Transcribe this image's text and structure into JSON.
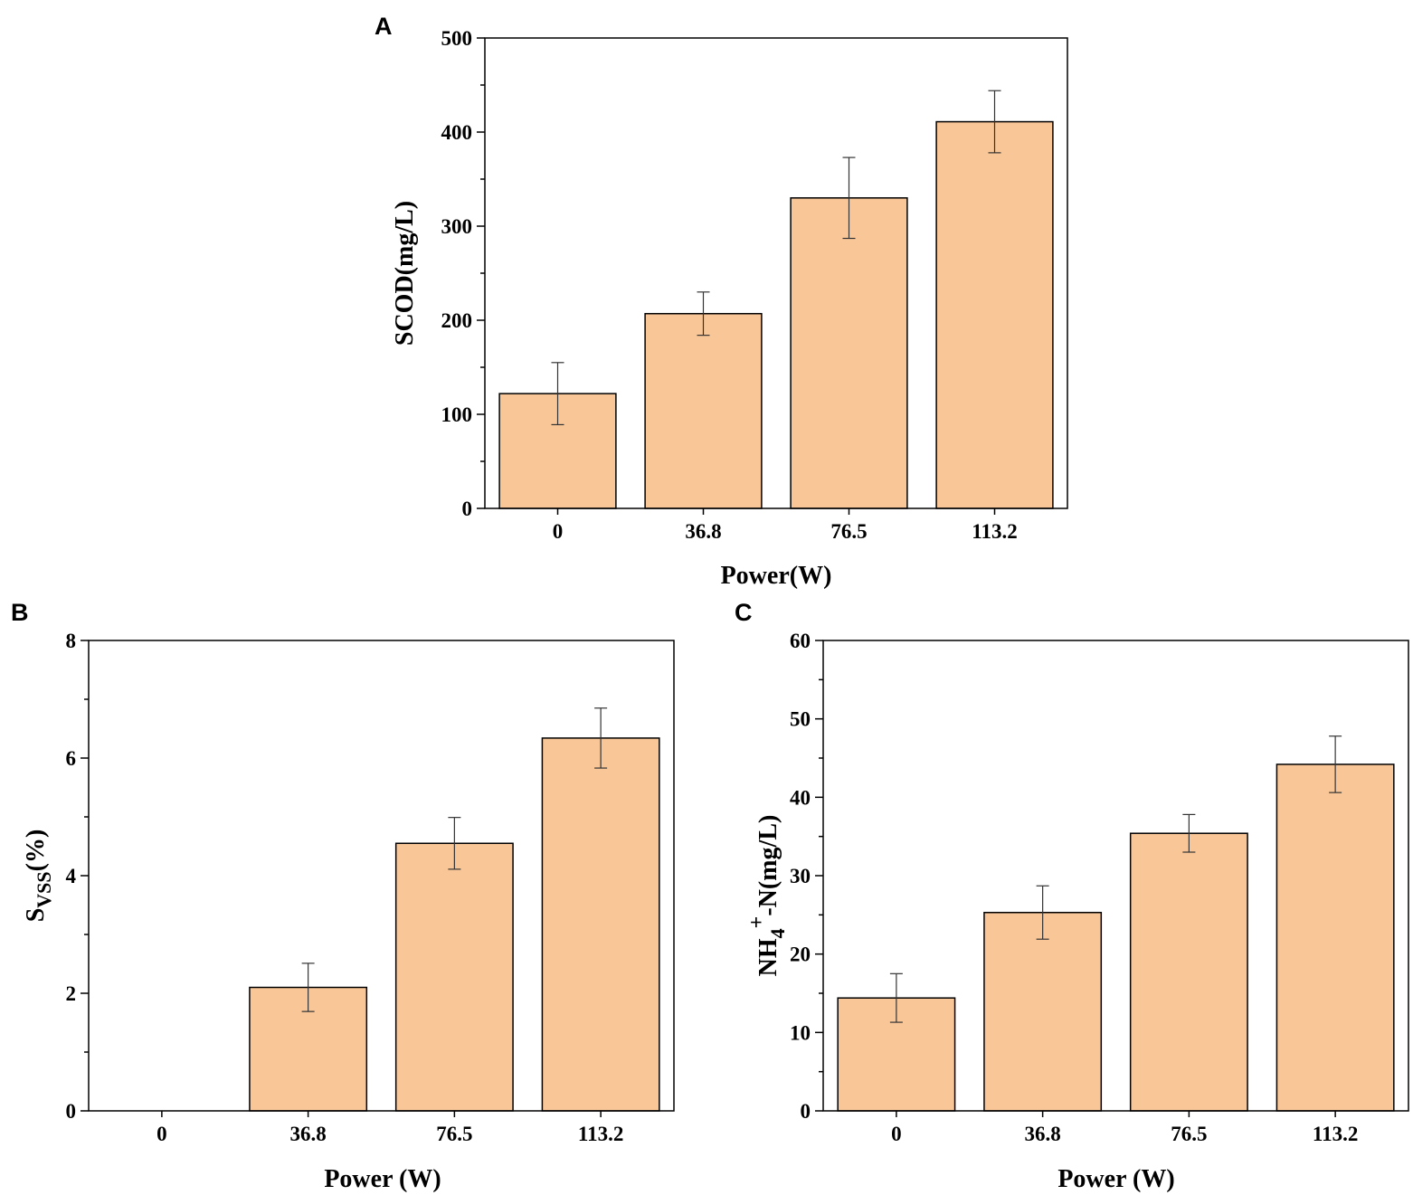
{
  "colors": {
    "bar_fill": "#F9C697",
    "bar_stroke": "#000000",
    "error_bar": "#333333"
  },
  "chart_data": [
    {
      "id": "A",
      "panel_label": "A",
      "type": "bar",
      "categories": [
        "0",
        "36.8",
        "76.5",
        "113.2"
      ],
      "values": [
        122,
        207,
        330,
        411
      ],
      "errors": [
        33,
        23,
        43,
        33
      ],
      "xlabel": "Power(W)",
      "ylabel": "SCOD(mg/L)",
      "ylim": [
        0,
        500
      ],
      "yticks": [
        "0",
        "100",
        "200",
        "300",
        "400",
        "500"
      ]
    },
    {
      "id": "B",
      "panel_label": "B",
      "type": "bar",
      "categories": [
        "0",
        "36.8",
        "76.5",
        "113.2"
      ],
      "values": [
        0,
        2.1,
        4.55,
        6.34
      ],
      "errors": [
        0,
        0.41,
        0.44,
        0.51
      ],
      "xlabel": "Power (W)",
      "ylabel": "SVSS(%)",
      "ylabel_main": "S",
      "ylabel_sub": "VSS",
      "ylabel_rest": "(%)",
      "ylim": [
        0,
        8
      ],
      "yticks": [
        "0",
        "2",
        "4",
        "6",
        "8"
      ]
    },
    {
      "id": "C",
      "panel_label": "C",
      "type": "bar",
      "categories": [
        "0",
        "36.8",
        "76.5",
        "113.2"
      ],
      "values": [
        14.4,
        25.3,
        35.4,
        44.2
      ],
      "errors": [
        3.1,
        3.4,
        2.4,
        3.6
      ],
      "xlabel": "Power (W)",
      "ylabel": "NH4+-N(mg/L)",
      "ylabel_base": "NH",
      "ylabel_sub": "4",
      "ylabel_sup": "+",
      "ylabel_rest": "-N(mg/L)",
      "ylim": [
        0,
        60
      ],
      "yticks": [
        "0",
        "10",
        "20",
        "30",
        "40",
        "50",
        "60"
      ]
    }
  ]
}
